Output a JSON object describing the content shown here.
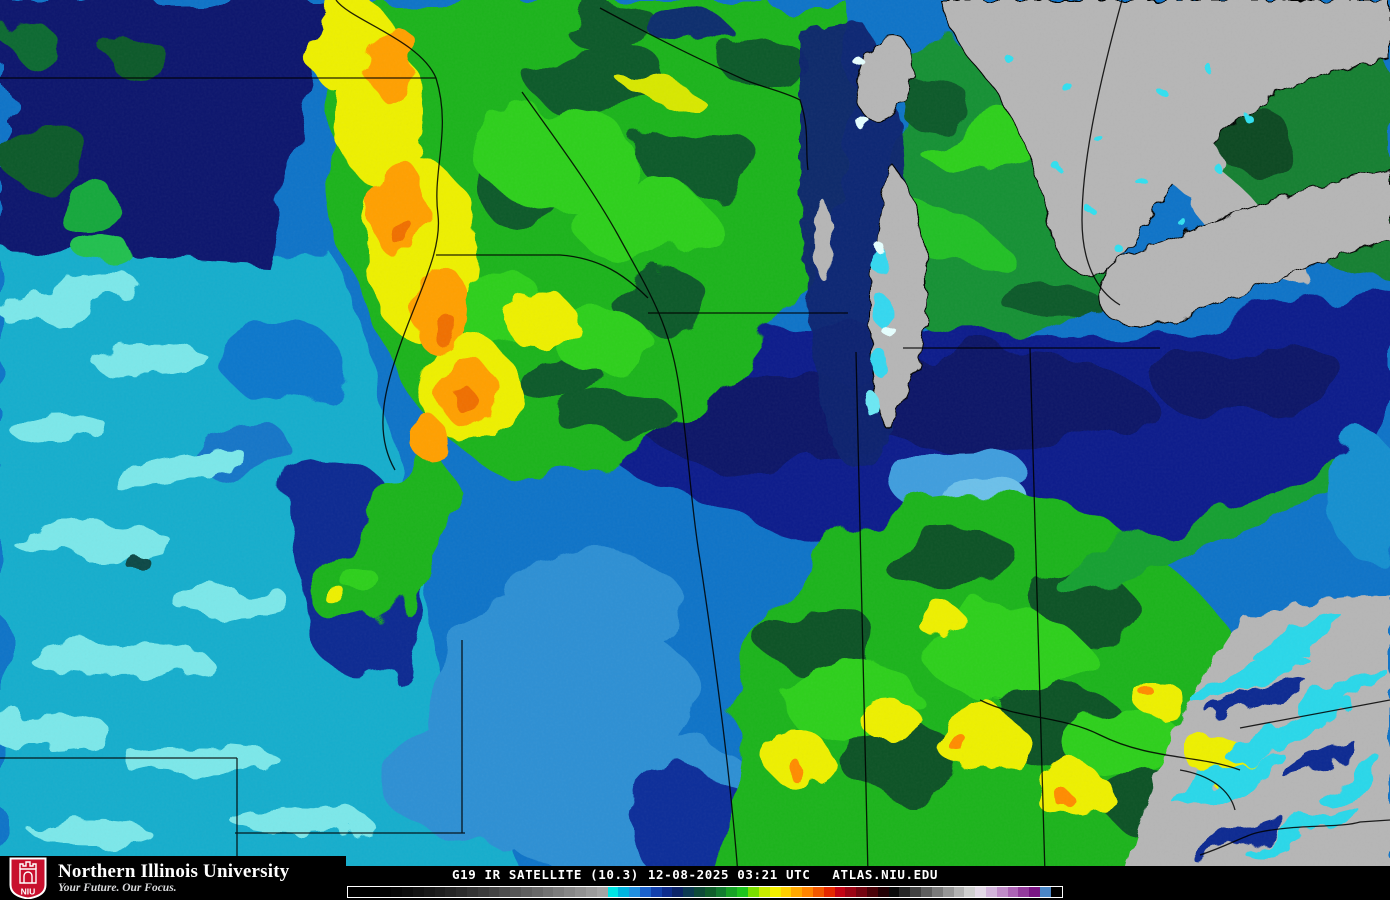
{
  "branding": {
    "university_name": "Northern Illinois University",
    "tagline": "Your Future. Our Focus.",
    "logo_acronym": "NIU",
    "shield_red": "#c8102e",
    "text_white": "#ffffff"
  },
  "caption": {
    "product": "G19 IR SATELLITE (10.3)",
    "datetime": "12-08-2025 03:21 UTC",
    "source": "ATLAS.NIU.EDU",
    "text_color": "#ffffff"
  },
  "colorbar": {
    "border_color": "#ffffff",
    "segments": [
      "#000000",
      "#000000",
      "#000000",
      "#030303",
      "#070707",
      "#0c0c0c",
      "#121212",
      "#181818",
      "#1e1e1e",
      "#252525",
      "#2c2c2c",
      "#343434",
      "#3c3c3c",
      "#444444",
      "#4d4d4d",
      "#565656",
      "#5f5f5f",
      "#686868",
      "#727272",
      "#7c7c7c",
      "#868686",
      "#909090",
      "#9a9a9a",
      "#a4a4a4",
      "#00e4e4",
      "#00b4e0",
      "#2090e0",
      "#1b62cc",
      "#1240ac",
      "#0d2c8c",
      "#0b2468",
      "#0c3a52",
      "#0d4a38",
      "#0f5e2c",
      "#127c30",
      "#17a226",
      "#1ec41e",
      "#7ade00",
      "#c8ec00",
      "#f4f000",
      "#ffd000",
      "#ffa800",
      "#ff8400",
      "#f25800",
      "#e42800",
      "#c40414",
      "#9c0414",
      "#740410",
      "#4a0208",
      "#220004",
      "#0a0a0a",
      "#262626",
      "#424242",
      "#5e5e5e",
      "#7a7a7a",
      "#969696",
      "#b2b2b2",
      "#cecece",
      "#e2d8e6",
      "#d2b4da",
      "#c08cc8",
      "#ac64b4",
      "#943c9c",
      "#7a1684",
      "#4b86c6",
      "#000000"
    ]
  },
  "map_palette": {
    "warm_blue": "#0f74c8",
    "cool_cyan": "#16aecd",
    "light_cyan": "#7ce8ea",
    "deep_navy": "#08186e",
    "cold_navy": "#0a1f8c",
    "green": "#1cb41c",
    "dark_green": "#0b5a28",
    "bright_green": "#2fd01f",
    "yellow": "#eef000",
    "orange": "#ffa000",
    "deep_orange": "#f07000",
    "lake_gray": "#b6b6b6",
    "border_line": "#000000"
  }
}
